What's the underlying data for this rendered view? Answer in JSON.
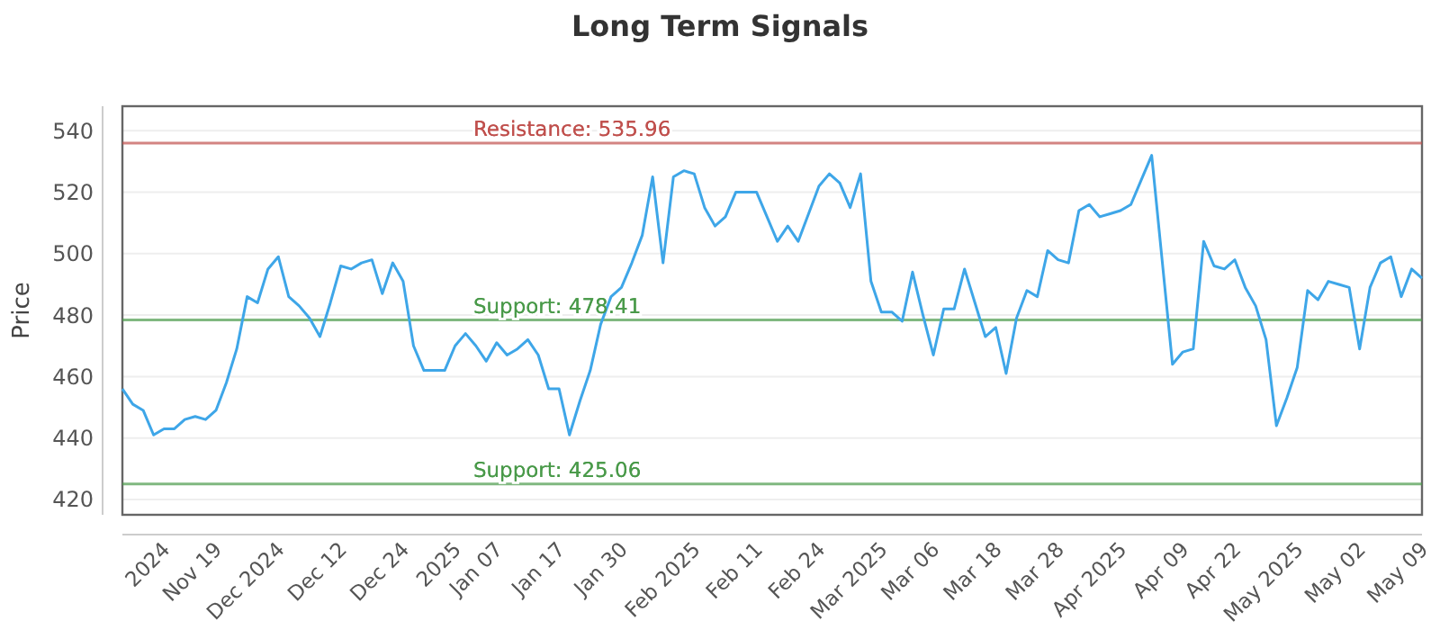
{
  "chart_data": {
    "type": "line",
    "title": "Long Term Signals",
    "ylabel": "Price",
    "categories": [
      null,
      null,
      null,
      null,
      "2024",
      null,
      null,
      null,
      null,
      "Nov 19",
      null,
      null,
      null,
      null,
      null,
      "Dec 2024",
      null,
      null,
      null,
      null,
      null,
      "Dec 12",
      null,
      null,
      null,
      null,
      null,
      "Dec 24",
      null,
      null,
      null,
      null,
      "2025",
      null,
      null,
      null,
      "Jan 07",
      null,
      null,
      null,
      null,
      null,
      "Jan 17",
      null,
      null,
      null,
      null,
      null,
      "Jan 30",
      null,
      null,
      null,
      null,
      null,
      null,
      "Feb 2025",
      null,
      null,
      null,
      null,
      null,
      "Feb 11",
      null,
      null,
      null,
      null,
      null,
      "Feb 24",
      null,
      null,
      null,
      null,
      null,
      "Mar 2025",
      null,
      null,
      null,
      null,
      "Mar 06",
      null,
      null,
      null,
      null,
      null,
      "Mar 18",
      null,
      null,
      null,
      null,
      null,
      "Mar 28",
      null,
      null,
      null,
      null,
      null,
      "Apr 2025",
      null,
      null,
      null,
      null,
      null,
      "Apr 09",
      null,
      null,
      null,
      null,
      "Apr 22",
      null,
      null,
      null,
      null,
      null,
      "May 2025",
      null,
      null,
      null,
      null,
      null,
      "May 02",
      null,
      null,
      null,
      null,
      null,
      "May 09"
    ],
    "series": [
      {
        "color": "#3ea6e8",
        "values": [
          456,
          451,
          449,
          441,
          443,
          443,
          446,
          447,
          446,
          449,
          458,
          469,
          486,
          484,
          495,
          499,
          486,
          483,
          479,
          473,
          484,
          496,
          495,
          497,
          498,
          487,
          497,
          491,
          470,
          462,
          462,
          462,
          470,
          474,
          470,
          465,
          471,
          467,
          469,
          472,
          467,
          456,
          456,
          441,
          452,
          462,
          477,
          486,
          489,
          497,
          506,
          525,
          497,
          525,
          527,
          526,
          515,
          509,
          512,
          520,
          520,
          520,
          512,
          504,
          509,
          504,
          513,
          522,
          526,
          523,
          515,
          526,
          491,
          481,
          481,
          478,
          494,
          480,
          467,
          482,
          482,
          495,
          484,
          473,
          476,
          461,
          479,
          488,
          486,
          501,
          498,
          497,
          514,
          516,
          512,
          513,
          514,
          516,
          524,
          532,
          498,
          464,
          468,
          469,
          504,
          496,
          495,
          498,
          489,
          483,
          472,
          444,
          453,
          463,
          488,
          485,
          491,
          490,
          489,
          469,
          489,
          497,
          499,
          486,
          495,
          492
        ]
      }
    ],
    "ylim": [
      415,
      548
    ],
    "yticks": [
      420,
      440,
      460,
      480,
      500,
      520,
      540
    ],
    "grid": "y",
    "marker": "none",
    "line_style": "solid",
    "ref_lines": [
      {
        "axis": "y",
        "value": 535.96,
        "label": "Resistance: 535.96",
        "color": "#c0504d"
      },
      {
        "axis": "y",
        "value": 478.41,
        "label": "Support: 478.41",
        "color": "#4a9a4a"
      },
      {
        "axis": "y",
        "value": 425.06,
        "label": "Support: 425.06",
        "color": "#4a9a4a"
      }
    ]
  }
}
